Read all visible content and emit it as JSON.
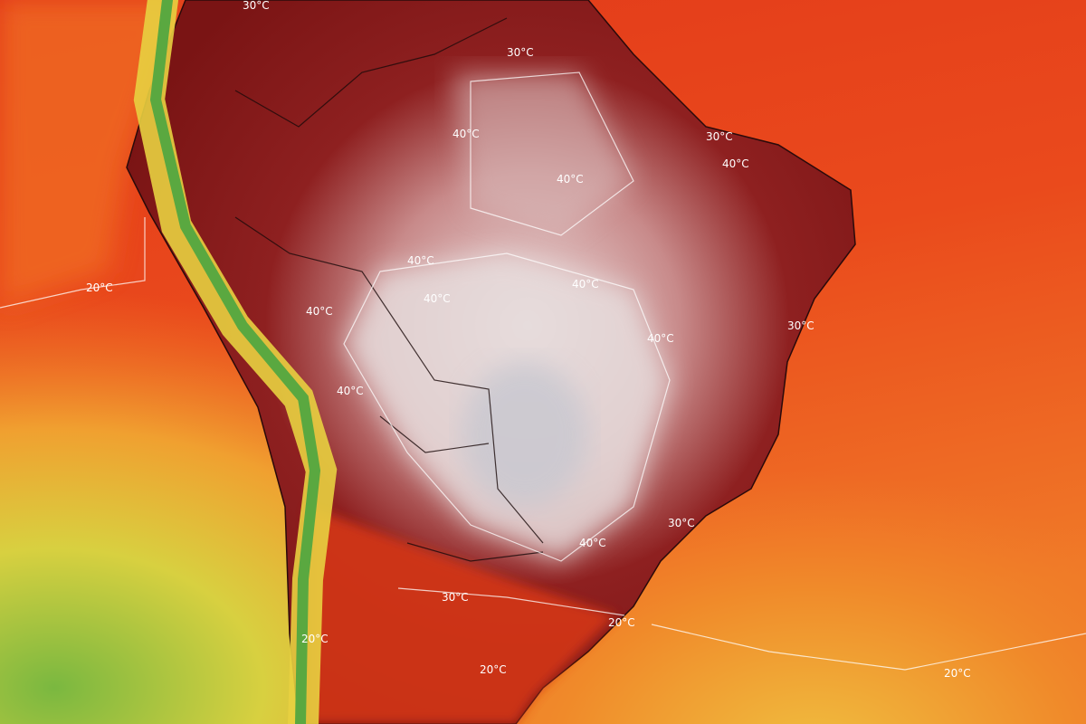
{
  "map": {
    "kind": "temperature-forecast",
    "region": "South America",
    "colors": {
      "ocean_warm": "#e8401c",
      "ocean_mild": "#f08a2a",
      "cool": "#e8d040",
      "cold": "#8cc04a",
      "hot": "#8a1a1a",
      "extreme": "#e8dede"
    },
    "isotherm_labels": [
      "30°C",
      "40°C",
      "40°C",
      "30°C",
      "40°C",
      "20°C",
      "40°C",
      "40°C",
      "40°C",
      "40°C",
      "40°C",
      "30°C",
      "40°C",
      "30°C",
      "40°C",
      "30°C",
      "20°C",
      "20°C",
      "20°C",
      "20°C",
      "30°C"
    ]
  }
}
